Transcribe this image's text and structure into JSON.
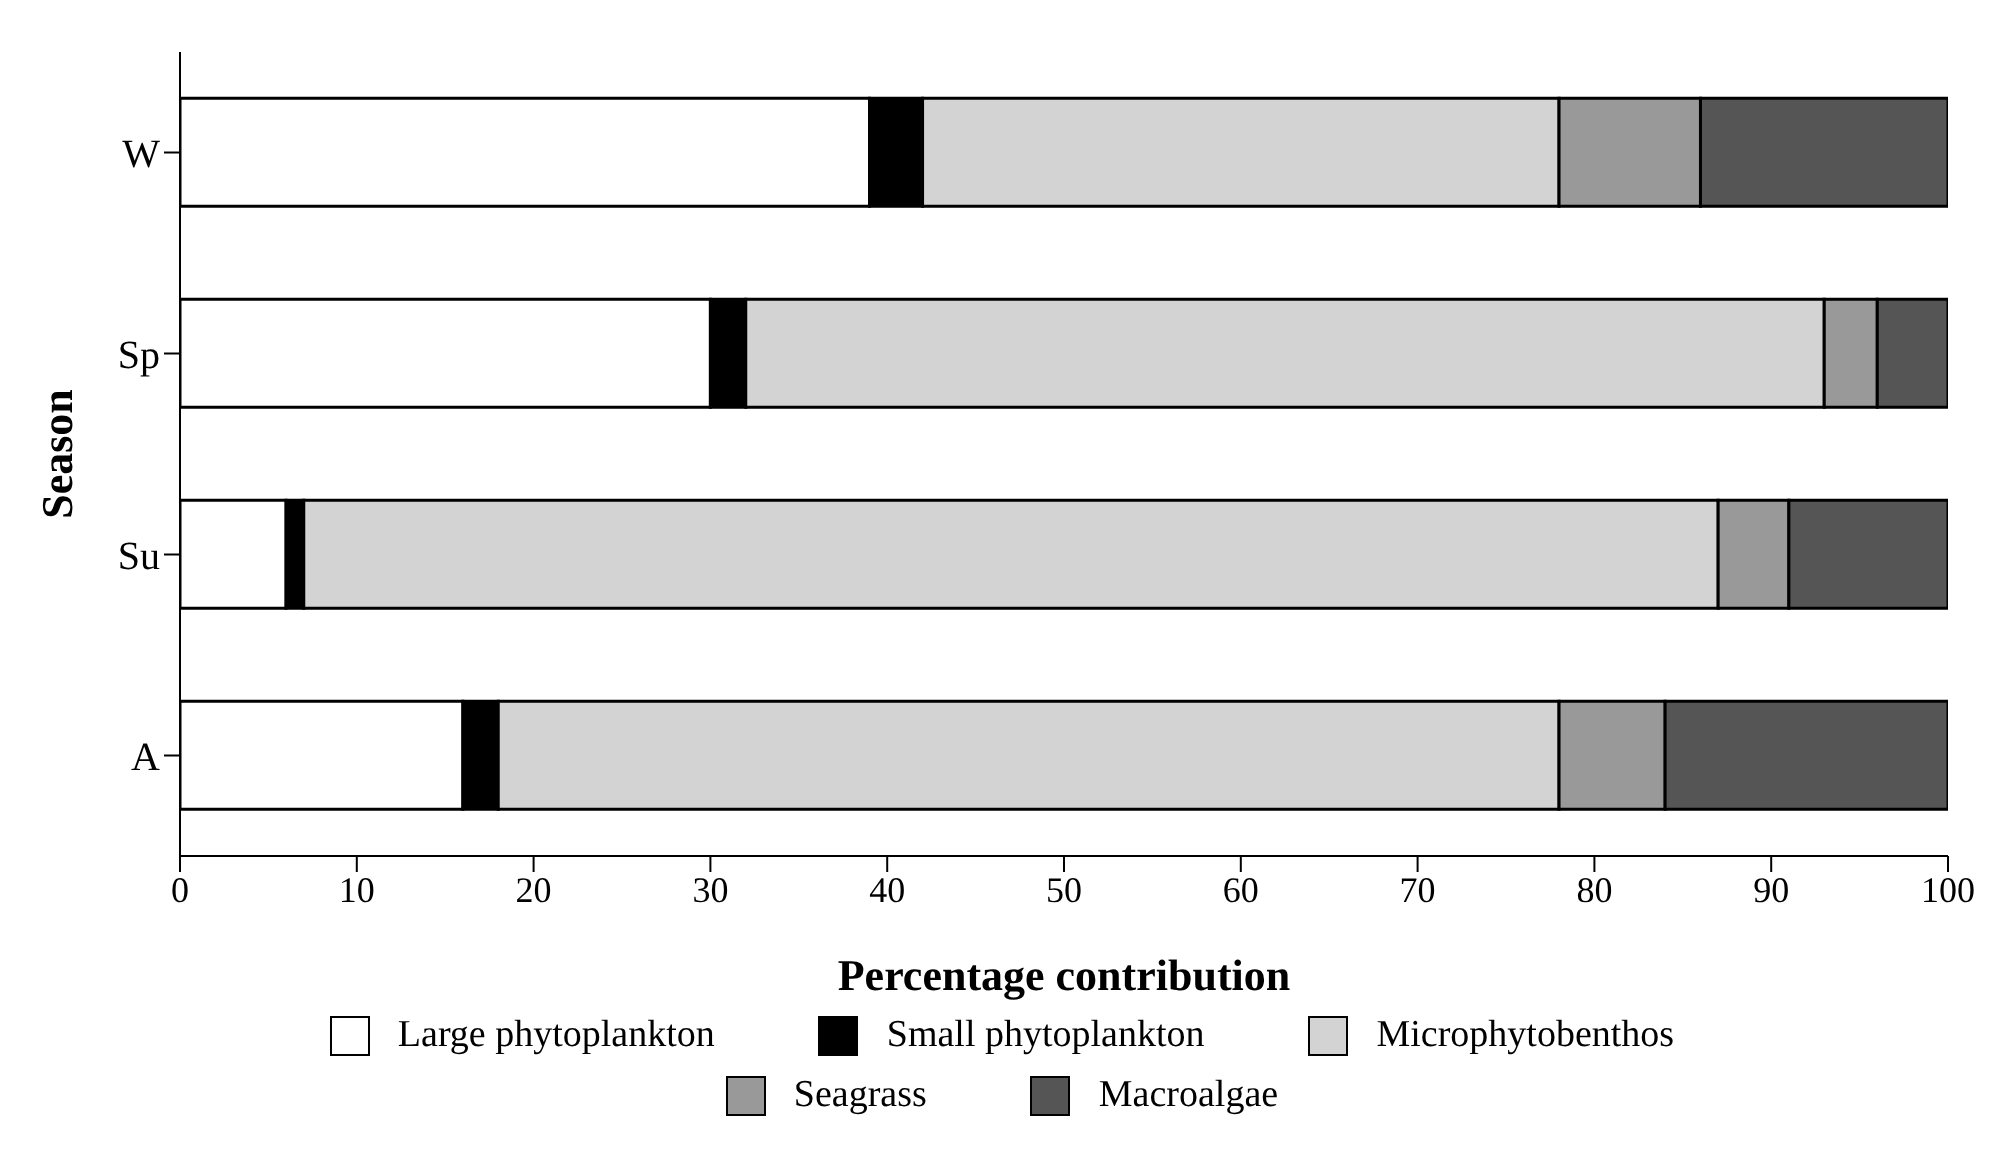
{
  "chart_data": {
    "type": "bar",
    "orientation": "horizontal",
    "stacked": true,
    "xlabel": "Percentage contribution",
    "ylabel": "Season",
    "categories": [
      "W",
      "Sp",
      "Su",
      "A"
    ],
    "series": [
      {
        "name": "Large phytoplankton",
        "color": "#ffffff",
        "values": [
          39,
          30,
          6,
          16
        ]
      },
      {
        "name": "Small phytoplankton",
        "color": "#000000",
        "values": [
          3,
          2,
          1,
          2
        ]
      },
      {
        "name": "Microphytobenthos",
        "color": "#d3d3d3",
        "values": [
          36,
          61,
          80,
          60
        ]
      },
      {
        "name": "Seagrass",
        "color": "#999999",
        "values": [
          8,
          3,
          4,
          6
        ]
      },
      {
        "name": "Macroalgae",
        "color": "#555555",
        "values": [
          14,
          4,
          9,
          16
        ]
      }
    ],
    "xlim": [
      0,
      100
    ],
    "xticks": [
      0,
      10,
      20,
      30,
      40,
      50,
      60,
      70,
      80,
      90,
      100
    ],
    "legend": "bottom"
  }
}
